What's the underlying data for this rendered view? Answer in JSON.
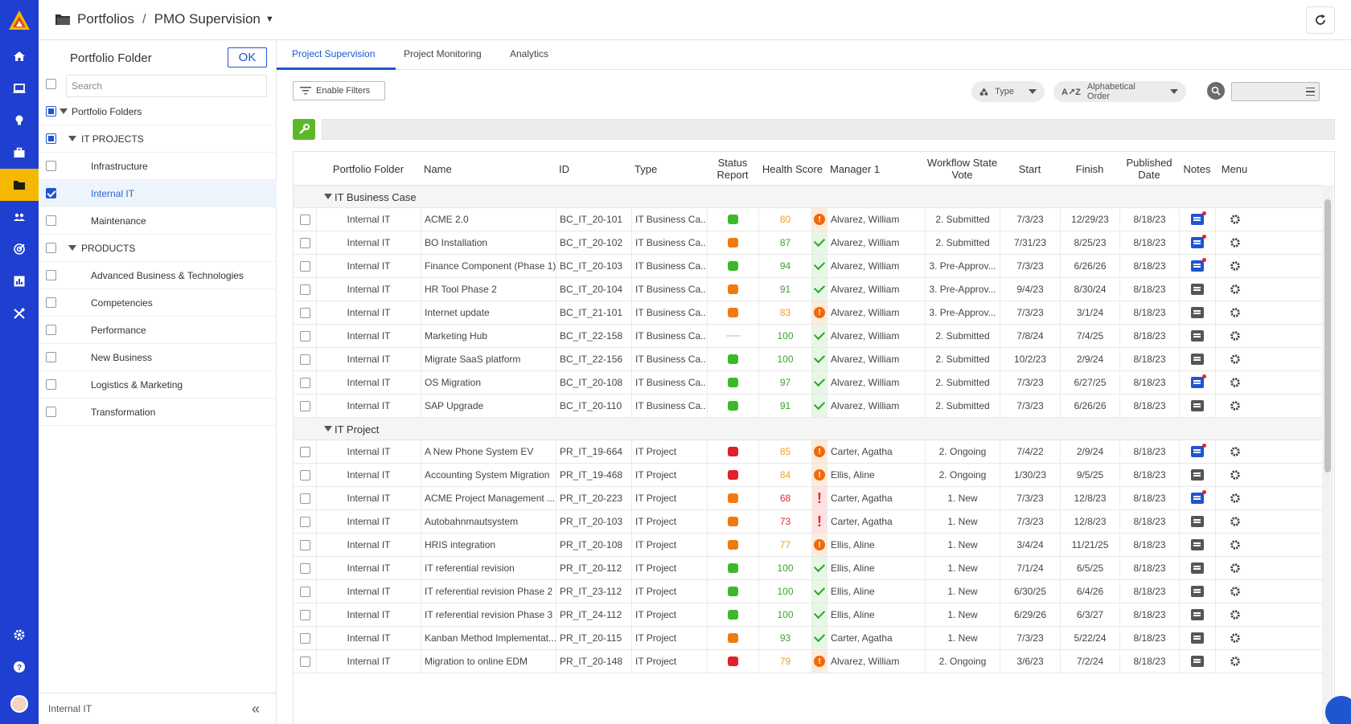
{
  "header": {
    "breadcrumb_root": "Portfolios",
    "breadcrumb_separator": "/",
    "breadcrumb_current": "PMO Supervision"
  },
  "nav": {
    "items": [
      "home-icon",
      "monitor-icon",
      "bulb-icon",
      "briefcase-icon",
      "folder-icon",
      "people-icon",
      "target-icon",
      "chart-icon",
      "tools-icon"
    ],
    "bottom_items": [
      "gear-icon",
      "help-icon",
      "avatar"
    ],
    "active_item": "folder-icon",
    "accent": "#1e3fd0",
    "active_color": "#f5b800"
  },
  "folder_panel": {
    "title": "Portfolio Folder",
    "ok_label": "OK",
    "search_placeholder": "Search",
    "tree": [
      {
        "label": "Portfolio Folders",
        "level": 0,
        "state": "partial",
        "expanded": true
      },
      {
        "label": "IT PROJECTS",
        "level": 1,
        "state": "partial",
        "expanded": true
      },
      {
        "label": "Infrastructure",
        "level": 2,
        "state": "unchecked"
      },
      {
        "label": "Internal IT",
        "level": 2,
        "state": "checked",
        "selected": true
      },
      {
        "label": "Maintenance",
        "level": 2,
        "state": "unchecked"
      },
      {
        "label": "PRODUCTS",
        "level": 1,
        "state": "unchecked",
        "expanded": true
      },
      {
        "label": "Advanced Business & Technologies",
        "level": 2,
        "state": "unchecked"
      },
      {
        "label": "Competencies",
        "level": 2,
        "state": "unchecked"
      },
      {
        "label": "Performance",
        "level": 2,
        "state": "unchecked"
      },
      {
        "label": "New Business",
        "level": 2,
        "state": "unchecked"
      },
      {
        "label": "Logistics & Marketing",
        "level": 2,
        "state": "unchecked"
      },
      {
        "label": "Transformation",
        "level": 2,
        "state": "unchecked"
      }
    ],
    "footer_label": "Internal IT"
  },
  "tabs": [
    {
      "label": "Project Supervision",
      "active": true
    },
    {
      "label": "Project Monitoring",
      "active": false
    },
    {
      "label": "Analytics",
      "active": false
    }
  ],
  "toolbar": {
    "filters_label": "Enable Filters",
    "type_label": "Type",
    "sort_label": "Alphabetical Order"
  },
  "columns": [
    "Portfolio Folder",
    "Name",
    "ID",
    "Type",
    "Status Report",
    "Health Score",
    "Manager 1",
    "Workflow State Vote",
    "Start",
    "Finish",
    "Published Date",
    "Notes",
    "Menu"
  ],
  "colors": {
    "status_good": "#3db82a",
    "status_mixed": "#f07a10",
    "status_bad": "#e0202a",
    "health_good": "#2aa82a",
    "health_warn": "#f06a0a",
    "health_bad": "#e22222",
    "score_green": "#3aa52a",
    "score_orange": "#f0a020",
    "score_red": "#e02a2a"
  },
  "groups": [
    {
      "label": "IT Business Case",
      "rows": [
        {
          "folder": "Internal IT",
          "name": "ACME 2.0",
          "id": "BC_IT_20-101",
          "type": "IT Business Ca...",
          "status": "good",
          "score": "80",
          "score_color": "orange",
          "health": "warn",
          "manager": "Alvarez, William",
          "workflow": "2. Submitted",
          "start": "7/3/23",
          "finish": "12/29/23",
          "published": "8/18/23",
          "note": "blue"
        },
        {
          "folder": "Internal IT",
          "name": "BO Installation",
          "id": "BC_IT_20-102",
          "type": "IT Business Ca...",
          "status": "mixed",
          "score": "87",
          "score_color": "green",
          "health": "good",
          "manager": "Alvarez, William",
          "workflow": "2. Submitted",
          "start": "7/31/23",
          "finish": "8/25/23",
          "published": "8/18/23",
          "note": "blue"
        },
        {
          "folder": "Internal IT",
          "name": "Finance Component (Phase 1)",
          "id": "BC_IT_20-103",
          "type": "IT Business Ca...",
          "status": "good",
          "score": "94",
          "score_color": "green",
          "health": "good",
          "manager": "Alvarez, William",
          "workflow": "3. Pre-Approv...",
          "start": "7/3/23",
          "finish": "6/26/26",
          "published": "8/18/23",
          "note": "blue"
        },
        {
          "folder": "Internal IT",
          "name": "HR Tool Phase 2",
          "id": "BC_IT_20-104",
          "type": "IT Business Ca...",
          "status": "mixed",
          "score": "91",
          "score_color": "green",
          "health": "good",
          "manager": "Alvarez, William",
          "workflow": "3. Pre-Approv...",
          "start": "9/4/23",
          "finish": "8/30/24",
          "published": "8/18/23",
          "note": "grey"
        },
        {
          "folder": "Internal IT",
          "name": "Internet update",
          "id": "BC_IT_21-101",
          "type": "IT Business Ca...",
          "status": "mixed",
          "score": "83",
          "score_color": "orange",
          "health": "warn",
          "manager": "Alvarez, William",
          "workflow": "3. Pre-Approv...",
          "start": "7/3/23",
          "finish": "3/1/24",
          "published": "8/18/23",
          "note": "grey"
        },
        {
          "folder": "Internal IT",
          "name": "Marketing Hub",
          "id": "BC_IT_22-158",
          "type": "IT Business Ca...",
          "status": "none",
          "score": "100",
          "score_color": "green",
          "health": "good",
          "manager": "Alvarez, William",
          "workflow": "2. Submitted",
          "start": "7/8/24",
          "finish": "7/4/25",
          "published": "8/18/23",
          "note": "grey"
        },
        {
          "folder": "Internal IT",
          "name": "Migrate SaaS platform",
          "id": "BC_IT_22-156",
          "type": "IT Business Ca...",
          "status": "good",
          "score": "100",
          "score_color": "green",
          "health": "good",
          "manager": "Alvarez, William",
          "workflow": "2. Submitted",
          "start": "10/2/23",
          "finish": "2/9/24",
          "published": "8/18/23",
          "note": "grey"
        },
        {
          "folder": "Internal IT",
          "name": "OS Migration",
          "id": "BC_IT_20-108",
          "type": "IT Business Ca...",
          "status": "good",
          "score": "97",
          "score_color": "green",
          "health": "good",
          "manager": "Alvarez, William",
          "workflow": "2. Submitted",
          "start": "7/3/23",
          "finish": "6/27/25",
          "published": "8/18/23",
          "note": "blue"
        },
        {
          "folder": "Internal IT",
          "name": "SAP Upgrade",
          "id": "BC_IT_20-110",
          "type": "IT Business Ca...",
          "status": "good",
          "score": "91",
          "score_color": "green",
          "health": "good",
          "manager": "Alvarez, William",
          "workflow": "2. Submitted",
          "start": "7/3/23",
          "finish": "6/26/26",
          "published": "8/18/23",
          "note": "grey"
        }
      ]
    },
    {
      "label": "IT Project",
      "rows": [
        {
          "folder": "Internal IT",
          "name": "A New Phone System EV",
          "id": "PR_IT_19-664",
          "type": "IT Project",
          "status": "bad",
          "score": "85",
          "score_color": "orange",
          "health": "warn",
          "manager": "Carter, Agatha",
          "workflow": "2. Ongoing",
          "start": "7/4/22",
          "finish": "2/9/24",
          "published": "8/18/23",
          "note": "blue"
        },
        {
          "folder": "Internal IT",
          "name": "Accounting System Migration",
          "id": "PR_IT_19-468",
          "type": "IT Project",
          "status": "bad",
          "score": "84",
          "score_color": "orange",
          "health": "warn",
          "manager": "Ellis, Aline",
          "workflow": "2. Ongoing",
          "start": "1/30/23",
          "finish": "9/5/25",
          "published": "8/18/23",
          "note": "grey"
        },
        {
          "folder": "Internal IT",
          "name": "ACME Project Management ...",
          "id": "PR_IT_20-223",
          "type": "IT Project",
          "status": "mixed",
          "score": "68",
          "score_color": "red",
          "health": "bad",
          "manager": "Carter, Agatha",
          "workflow": "1. New",
          "start": "7/3/23",
          "finish": "12/8/23",
          "published": "8/18/23",
          "note": "blue"
        },
        {
          "folder": "Internal IT",
          "name": "Autobahnmautsystem",
          "id": "PR_IT_20-103",
          "type": "IT Project",
          "status": "mixed",
          "score": "73",
          "score_color": "red",
          "health": "bad",
          "manager": "Carter, Agatha",
          "workflow": "1. New",
          "start": "7/3/23",
          "finish": "12/8/23",
          "published": "8/18/23",
          "note": "grey"
        },
        {
          "folder": "Internal IT",
          "name": "HRIS integration",
          "id": "PR_IT_20-108",
          "type": "IT Project",
          "status": "mixed",
          "score": "77",
          "score_color": "orange",
          "health": "warn",
          "manager": "Ellis, Aline",
          "workflow": "1. New",
          "start": "3/4/24",
          "finish": "11/21/25",
          "published": "8/18/23",
          "note": "grey"
        },
        {
          "folder": "Internal IT",
          "name": "IT referential revision",
          "id": "PR_IT_20-112",
          "type": "IT Project",
          "status": "good",
          "score": "100",
          "score_color": "green",
          "health": "good",
          "manager": "Ellis, Aline",
          "workflow": "1. New",
          "start": "7/1/24",
          "finish": "6/5/25",
          "published": "8/18/23",
          "note": "grey"
        },
        {
          "folder": "Internal IT",
          "name": "IT referential revision Phase 2",
          "id": "PR_IT_23-112",
          "type": "IT Project",
          "status": "good",
          "score": "100",
          "score_color": "green",
          "health": "good",
          "manager": "Ellis, Aline",
          "workflow": "1. New",
          "start": "6/30/25",
          "finish": "6/4/26",
          "published": "8/18/23",
          "note": "grey"
        },
        {
          "folder": "Internal IT",
          "name": "IT referential revision Phase 3",
          "id": "PR_IT_24-112",
          "type": "IT Project",
          "status": "good",
          "score": "100",
          "score_color": "green",
          "health": "good",
          "manager": "Ellis, Aline",
          "workflow": "1. New",
          "start": "6/29/26",
          "finish": "6/3/27",
          "published": "8/18/23",
          "note": "grey"
        },
        {
          "folder": "Internal IT",
          "name": "Kanban Method Implementat...",
          "id": "PR_IT_20-115",
          "type": "IT Project",
          "status": "mixed",
          "score": "93",
          "score_color": "green",
          "health": "good",
          "manager": "Carter, Agatha",
          "workflow": "1. New",
          "start": "7/3/23",
          "finish": "5/22/24",
          "published": "8/18/23",
          "note": "grey"
        },
        {
          "folder": "Internal IT",
          "name": "Migration to online EDM",
          "id": "PR_IT_20-148",
          "type": "IT Project",
          "status": "bad",
          "score": "79",
          "score_color": "orange",
          "health": "warn",
          "manager": "Alvarez, William",
          "workflow": "2. Ongoing",
          "start": "3/6/23",
          "finish": "7/2/24",
          "published": "8/18/23",
          "note": "grey"
        }
      ]
    }
  ]
}
